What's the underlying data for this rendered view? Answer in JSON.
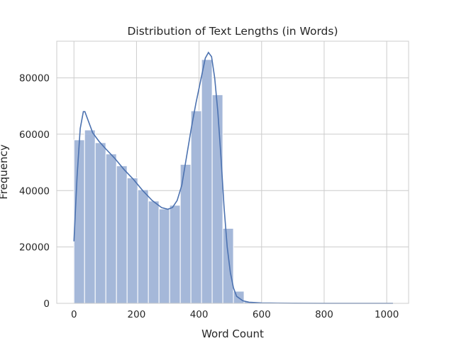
{
  "chart_data": {
    "type": "bar",
    "title": "Distribution of Text Lengths (in Words)",
    "xlabel": "Word Count",
    "ylabel": "Frequency",
    "xlim": [
      -55,
      1070
    ],
    "ylim": [
      0,
      93000
    ],
    "xticks": [
      0,
      200,
      400,
      600,
      800,
      1000
    ],
    "yticks": [
      0,
      20000,
      40000,
      60000,
      80000
    ],
    "grid": true,
    "bar_color": "#a5b8d9",
    "kde_color": "#4c72b0",
    "bins": [
      {
        "x0": 0,
        "x1": 34,
        "count": 58000
      },
      {
        "x0": 34,
        "x1": 68,
        "count": 61500
      },
      {
        "x0": 68,
        "x1": 102,
        "count": 57000
      },
      {
        "x0": 102,
        "x1": 136,
        "count": 53000
      },
      {
        "x0": 136,
        "x1": 170,
        "count": 48800
      },
      {
        "x0": 170,
        "x1": 204,
        "count": 44500
      },
      {
        "x0": 204,
        "x1": 238,
        "count": 40300
      },
      {
        "x0": 238,
        "x1": 272,
        "count": 36300
      },
      {
        "x0": 272,
        "x1": 306,
        "count": 33500
      },
      {
        "x0": 306,
        "x1": 340,
        "count": 34800
      },
      {
        "x0": 340,
        "x1": 374,
        "count": 49300
      },
      {
        "x0": 374,
        "x1": 408,
        "count": 68300
      },
      {
        "x0": 408,
        "x1": 442,
        "count": 86500
      },
      {
        "x0": 442,
        "x1": 476,
        "count": 74000
      },
      {
        "x0": 476,
        "x1": 510,
        "count": 26600
      },
      {
        "x0": 510,
        "x1": 544,
        "count": 4300
      },
      {
        "x0": 544,
        "x1": 578,
        "count": 600
      },
      {
        "x0": 578,
        "x1": 612,
        "count": 200
      },
      {
        "x0": 612,
        "x1": 646,
        "count": 100
      }
    ],
    "kde": {
      "x": [
        0,
        10,
        20,
        30,
        35,
        45,
        60,
        80,
        100,
        130,
        160,
        190,
        220,
        250,
        280,
        300,
        315,
        330,
        345,
        360,
        375,
        390,
        405,
        420,
        430,
        440,
        450,
        460,
        470,
        480,
        490,
        500,
        510,
        520,
        540,
        560,
        600,
        650,
        700,
        800,
        900,
        1000,
        1020
      ],
      "y": [
        22000,
        45000,
        62000,
        68000,
        68000,
        65000,
        60500,
        57500,
        55000,
        51500,
        47500,
        44000,
        40000,
        36500,
        34000,
        33400,
        34000,
        36500,
        42000,
        52000,
        62000,
        71000,
        79000,
        87000,
        89000,
        87500,
        80000,
        68000,
        52000,
        34000,
        20000,
        11000,
        5500,
        2500,
        900,
        400,
        150,
        80,
        40,
        20,
        10,
        5,
        5
      ]
    }
  }
}
